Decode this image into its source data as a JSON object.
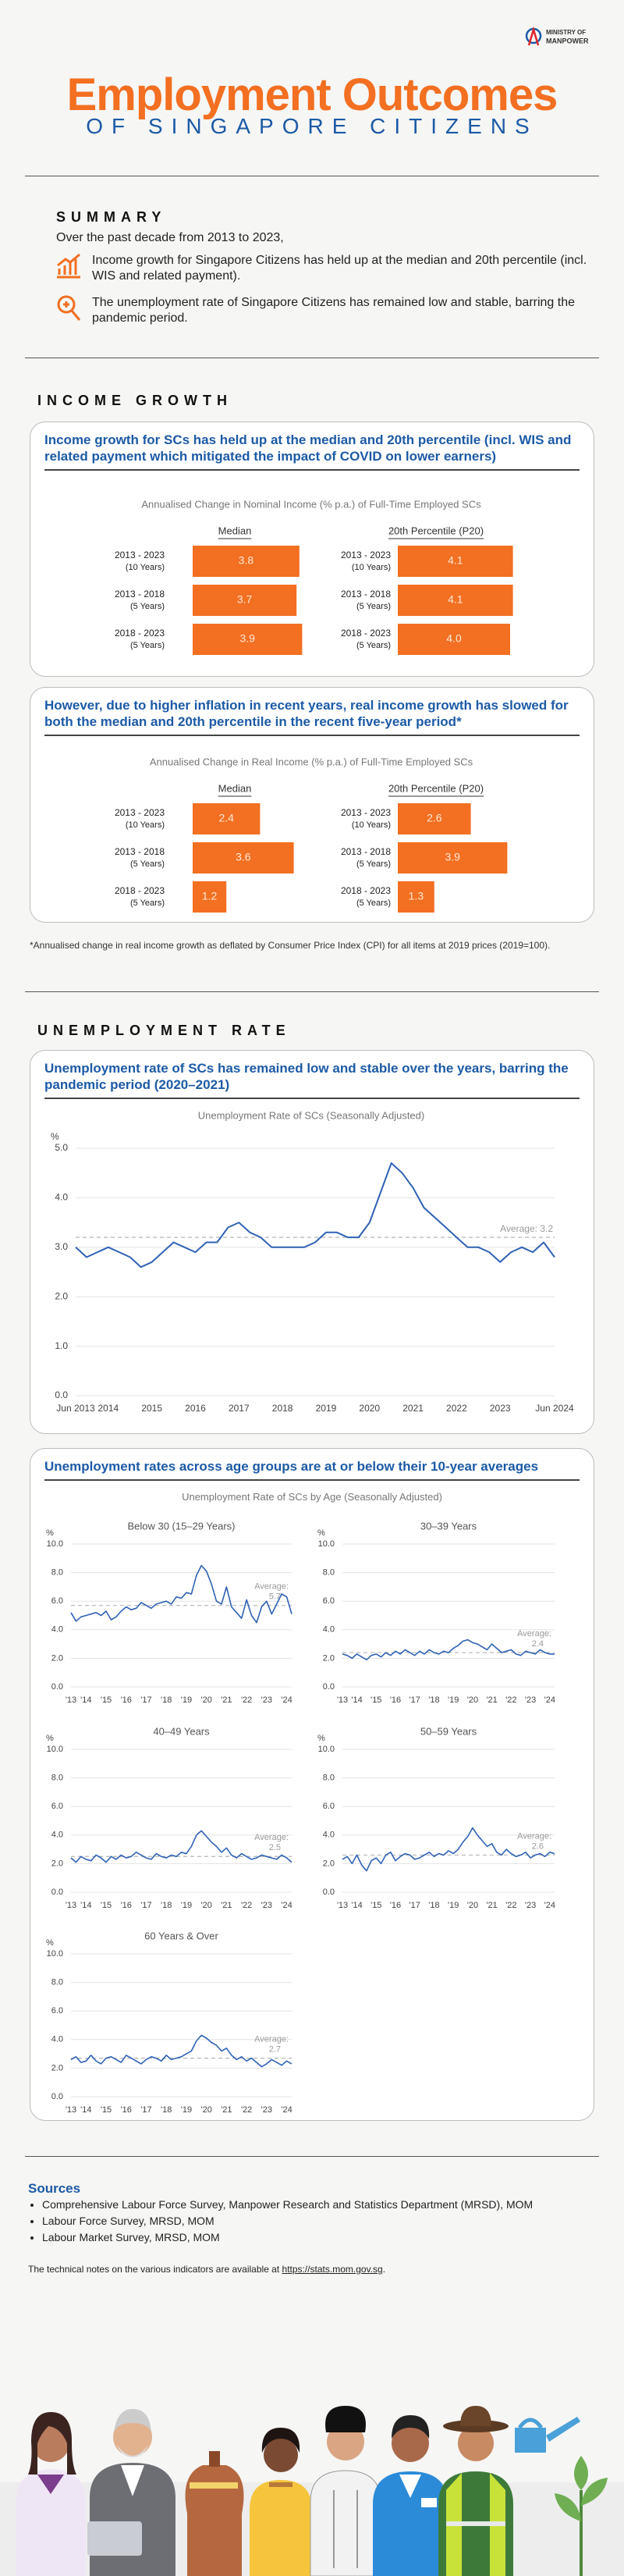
{
  "header": {
    "logo": [
      "MINISTRY OF",
      "MANPOWER"
    ],
    "title": "Employment Outcomes",
    "subtitle": "OF SINGAPORE CITIZENS"
  },
  "summary": {
    "heading": "SUMMARY",
    "intro": "Over the past decade from 2013 to 2023,",
    "points": [
      "Income growth for Singapore Citizens has held up at the median and 20th percentile (incl. WIS and related payment).",
      "The unemployment rate of Singapore Citizens has remained low and stable, barring the pandemic period."
    ]
  },
  "income": {
    "heading": "INCOME GROWTH",
    "footnote": "*Annualised change in real income growth as deflated by Consumer Price Index (CPI) for all items at 2019 prices (2019=100)."
  },
  "unemployment": {
    "heading": "UNEMPLOYMENT RATE",
    "age_headline": "Unemployment rates across age groups are at or below their 10-year averages",
    "age_title": "Unemployment Rate of SCs by Age (Seasonally Adjusted)"
  },
  "sources": {
    "heading": "Sources",
    "items": [
      "Comprehensive Labour Force Survey, Manpower Research and Statistics Department (MRSD), MOM",
      "Labour Force Survey, MRSD, MOM",
      "Labour Market Survey, MRSD, MOM"
    ],
    "note": "The technical notes on the various indicators are available at ",
    "link": "https://stats.mom.gov.sg",
    "note_end": "."
  },
  "chart_data": [
    {
      "type": "bar",
      "headline": "Income growth for SCs has held up at the median and 20th percentile (incl. WIS and related payment which mitigated the impact of COVID on lower earners)",
      "title": "Annualised Change in Nominal Income (% p.a.) of Full-Time Employed SCs",
      "categories": [
        "2013 - 2023",
        "2013 - 2018",
        "2018 - 2023"
      ],
      "category_periods": [
        "(10 Years)",
        "(5 Years)",
        "(5 Years)"
      ],
      "series": [
        {
          "name": "Median",
          "color": "#f36f21",
          "values": [
            3.8,
            3.7,
            3.9
          ],
          "value_labels": [
            "3.8",
            "3.7",
            "3.9"
          ]
        },
        {
          "name": "20th Percentile (P20)",
          "color": "#f36f21",
          "values": [
            4.1,
            4.1,
            4.0
          ],
          "value_labels": [
            "4.1",
            "4.1",
            "4.0"
          ]
        }
      ]
    },
    {
      "type": "bar",
      "headline": "However, due to higher inflation in recent years, real income growth has slowed for both the median and 20th percentile in the recent five-year period*",
      "title": "Annualised Change in Real Income (% p.a.) of Full-Time Employed SCs",
      "categories": [
        "2013 - 2023",
        "2013 - 2018",
        "2018 - 2023"
      ],
      "category_periods": [
        "(10 Years)",
        "(5 Years)",
        "(5 Years)"
      ],
      "series": [
        {
          "name": "Median",
          "color": "#f36f21",
          "values": [
            2.4,
            3.6,
            1.2
          ],
          "value_labels": [
            "2.4",
            "3.6",
            "1.2"
          ]
        },
        {
          "name": "20th Percentile (P20)",
          "color": "#f36f21",
          "values": [
            2.6,
            3.9,
            1.3
          ],
          "value_labels": [
            "2.6",
            "3.9",
            "1.3"
          ]
        }
      ]
    },
    {
      "type": "line",
      "headline": "Unemployment rate of SCs has remained low and stable over the years, barring the pandemic period (2020–2021)",
      "title": "Unemployment Rate of SCs (Seasonally Adjusted)",
      "y_unit": "%",
      "color": "#2f62b5",
      "categories": [
        "Jun 2013",
        null,
        null,
        "2014",
        null,
        null,
        null,
        "2015",
        null,
        null,
        null,
        "2016",
        null,
        null,
        null,
        "2017",
        null,
        null,
        null,
        "2018",
        null,
        null,
        null,
        "2019",
        null,
        null,
        null,
        "2020",
        null,
        null,
        null,
        "2021",
        null,
        null,
        null,
        "2022",
        null,
        null,
        null,
        "2023",
        null,
        null,
        null,
        null,
        "Jun 2024"
      ],
      "values": [
        3.0,
        2.8,
        2.9,
        3.0,
        2.9,
        2.8,
        2.6,
        2.7,
        2.9,
        3.1,
        3.0,
        2.9,
        3.1,
        3.1,
        3.4,
        3.5,
        3.3,
        3.2,
        3.0,
        3.0,
        3.0,
        3.0,
        3.1,
        3.3,
        3.3,
        3.2,
        3.2,
        3.5,
        4.1,
        4.7,
        4.5,
        4.2,
        3.8,
        3.6,
        3.4,
        3.2,
        3.0,
        3.0,
        2.9,
        2.7,
        2.9,
        3.0,
        2.9,
        3.1,
        2.8
      ],
      "average": 3.2,
      "average_label": "Average:",
      "ylim": [
        0,
        5
      ],
      "yticks": [
        {
          "value": 0,
          "label": "0.0"
        },
        {
          "value": 1,
          "label": "1.0"
        },
        {
          "value": 2,
          "label": "2.0"
        },
        {
          "value": 3,
          "label": "3.0"
        },
        {
          "value": 4,
          "label": "4.0"
        },
        {
          "value": 5,
          "label": "5.0"
        }
      ],
      "grid": true
    },
    {
      "type": "line",
      "title": "Below 30 (15–29 Years)",
      "y_unit": "%",
      "color": "#2f62b5",
      "categories": [
        "'13",
        null,
        null,
        "'14",
        null,
        null,
        null,
        "'15",
        null,
        null,
        null,
        "'16",
        null,
        null,
        null,
        "'17",
        null,
        null,
        null,
        "'18",
        null,
        null,
        null,
        "'19",
        null,
        null,
        null,
        "'20",
        null,
        null,
        null,
        "'21",
        null,
        null,
        null,
        "'22",
        null,
        null,
        null,
        "'23",
        null,
        null,
        null,
        "'24",
        null
      ],
      "values": [
        5.2,
        4.6,
        4.9,
        5.0,
        5.1,
        5.2,
        5.0,
        5.3,
        4.7,
        4.9,
        5.3,
        5.6,
        5.4,
        5.5,
        5.9,
        5.7,
        5.5,
        5.8,
        5.9,
        6.0,
        5.8,
        6.3,
        6.2,
        6.6,
        6.5,
        7.8,
        8.5,
        8.1,
        7.2,
        6.0,
        5.8,
        7.0,
        5.6,
        5.2,
        4.8,
        6.1,
        5.0,
        4.5,
        5.6,
        6.0,
        5.1,
        5.8,
        6.5,
        6.3,
        5.1
      ],
      "average": 5.7,
      "average_label": "Average:",
      "ylim": [
        0,
        10
      ],
      "yticks": [
        {
          "value": 0,
          "label": "0.0"
        },
        {
          "value": 2,
          "label": "2.0"
        },
        {
          "value": 4,
          "label": "4.0"
        },
        {
          "value": 6,
          "label": "6.0"
        },
        {
          "value": 8,
          "label": "8.0"
        },
        {
          "value": 10,
          "label": "10.0"
        }
      ],
      "grid": true
    },
    {
      "type": "line",
      "title": "30–39 Years",
      "y_unit": "%",
      "color": "#2f62b5",
      "categories": [
        "'13",
        null,
        null,
        "'14",
        null,
        null,
        null,
        "'15",
        null,
        null,
        null,
        "'16",
        null,
        null,
        null,
        "'17",
        null,
        null,
        null,
        "'18",
        null,
        null,
        null,
        "'19",
        null,
        null,
        null,
        "'20",
        null,
        null,
        null,
        "'21",
        null,
        null,
        null,
        "'22",
        null,
        null,
        null,
        "'23",
        null,
        null,
        null,
        "'24",
        null
      ],
      "values": [
        2.3,
        2.2,
        2.0,
        2.3,
        2.1,
        1.9,
        2.2,
        2.3,
        2.1,
        2.4,
        2.2,
        2.5,
        2.3,
        2.6,
        2.4,
        2.2,
        2.5,
        2.3,
        2.6,
        2.4,
        2.3,
        2.5,
        2.4,
        2.7,
        2.9,
        3.2,
        3.3,
        3.1,
        3.0,
        2.8,
        2.6,
        3.0,
        2.7,
        2.4,
        2.5,
        2.6,
        2.3,
        2.2,
        2.5,
        2.4,
        2.3,
        2.6,
        2.4,
        2.3,
        2.3
      ],
      "average": 2.4,
      "average_label": "Average:",
      "ylim": [
        0,
        10
      ],
      "yticks": [
        {
          "value": 0,
          "label": "0.0"
        },
        {
          "value": 2,
          "label": "2.0"
        },
        {
          "value": 4,
          "label": "4.0"
        },
        {
          "value": 6,
          "label": "6.0"
        },
        {
          "value": 8,
          "label": "8.0"
        },
        {
          "value": 10,
          "label": "10.0"
        }
      ],
      "grid": true
    },
    {
      "type": "line",
      "title": "40–49 Years",
      "y_unit": "%",
      "color": "#2f62b5",
      "categories": [
        "'13",
        null,
        null,
        "'14",
        null,
        null,
        null,
        "'15",
        null,
        null,
        null,
        "'16",
        null,
        null,
        null,
        "'17",
        null,
        null,
        null,
        "'18",
        null,
        null,
        null,
        "'19",
        null,
        null,
        null,
        "'20",
        null,
        null,
        null,
        "'21",
        null,
        null,
        null,
        "'22",
        null,
        null,
        null,
        "'23",
        null,
        null,
        null,
        "'24",
        null
      ],
      "values": [
        2.4,
        2.1,
        2.5,
        2.3,
        2.2,
        2.6,
        2.4,
        2.1,
        2.5,
        2.3,
        2.6,
        2.4,
        2.5,
        2.8,
        2.6,
        2.4,
        2.3,
        2.7,
        2.5,
        2.4,
        2.6,
        2.5,
        2.8,
        2.7,
        3.2,
        4.0,
        4.3,
        3.9,
        3.5,
        3.2,
        2.8,
        3.1,
        2.6,
        2.4,
        2.7,
        2.5,
        2.3,
        2.4,
        2.6,
        2.5,
        2.4,
        2.3,
        2.6,
        2.4,
        2.1
      ],
      "average": 2.5,
      "average_label": "Average:",
      "ylim": [
        0,
        10
      ],
      "yticks": [
        {
          "value": 0,
          "label": "0.0"
        },
        {
          "value": 2,
          "label": "2.0"
        },
        {
          "value": 4,
          "label": "4.0"
        },
        {
          "value": 6,
          "label": "6.0"
        },
        {
          "value": 8,
          "label": "8.0"
        },
        {
          "value": 10,
          "label": "10.0"
        }
      ],
      "grid": true
    },
    {
      "type": "line",
      "title": "50–59 Years",
      "y_unit": "%",
      "color": "#2f62b5",
      "categories": [
        "'13",
        null,
        null,
        "'14",
        null,
        null,
        null,
        "'15",
        null,
        null,
        null,
        "'16",
        null,
        null,
        null,
        "'17",
        null,
        null,
        null,
        "'18",
        null,
        null,
        null,
        "'19",
        null,
        null,
        null,
        "'20",
        null,
        null,
        null,
        "'21",
        null,
        null,
        null,
        "'22",
        null,
        null,
        null,
        "'23",
        null,
        null,
        null,
        "'24",
        null
      ],
      "values": [
        2.3,
        2.5,
        2.0,
        2.6,
        1.9,
        1.5,
        2.2,
        2.4,
        2.0,
        2.6,
        2.8,
        2.2,
        2.5,
        2.7,
        2.6,
        2.3,
        2.4,
        2.6,
        2.8,
        2.5,
        2.7,
        2.6,
        2.9,
        2.7,
        3.0,
        3.5,
        3.9,
        4.5,
        4.0,
        3.6,
        3.2,
        3.4,
        2.8,
        2.6,
        3.0,
        2.7,
        2.5,
        2.6,
        2.8,
        2.4,
        2.6,
        2.7,
        2.5,
        2.8,
        2.7
      ],
      "average": 2.6,
      "average_label": "Average:",
      "ylim": [
        0,
        10
      ],
      "yticks": [
        {
          "value": 0,
          "label": "0.0"
        },
        {
          "value": 2,
          "label": "2.0"
        },
        {
          "value": 4,
          "label": "4.0"
        },
        {
          "value": 6,
          "label": "6.0"
        },
        {
          "value": 8,
          "label": "8.0"
        },
        {
          "value": 10,
          "label": "10.0"
        }
      ],
      "grid": true
    },
    {
      "type": "line",
      "title": "60 Years & Over",
      "y_unit": "%",
      "color": "#2f62b5",
      "categories": [
        "'13",
        null,
        null,
        "'14",
        null,
        null,
        null,
        "'15",
        null,
        null,
        null,
        "'16",
        null,
        null,
        null,
        "'17",
        null,
        null,
        null,
        "'18",
        null,
        null,
        null,
        "'19",
        null,
        null,
        null,
        "'20",
        null,
        null,
        null,
        "'21",
        null,
        null,
        null,
        "'22",
        null,
        null,
        null,
        "'23",
        null,
        null,
        null,
        "'24",
        null
      ],
      "values": [
        2.6,
        2.8,
        2.4,
        2.5,
        2.9,
        2.5,
        2.3,
        2.7,
        2.8,
        2.6,
        2.4,
        2.9,
        2.7,
        2.5,
        2.3,
        2.6,
        2.8,
        2.7,
        2.5,
        2.9,
        2.6,
        2.7,
        2.8,
        3.0,
        3.2,
        3.9,
        4.3,
        4.1,
        3.8,
        3.6,
        3.2,
        3.4,
        2.9,
        2.6,
        2.8,
        2.5,
        2.7,
        2.4,
        2.1,
        2.3,
        2.6,
        2.4,
        2.2,
        2.5,
        2.3
      ],
      "average": 2.7,
      "average_label": "Average:",
      "ylim": [
        0,
        10
      ],
      "yticks": [
        {
          "value": 0,
          "label": "0.0"
        },
        {
          "value": 2,
          "label": "2.0"
        },
        {
          "value": 4,
          "label": "4.0"
        },
        {
          "value": 6,
          "label": "6.0"
        },
        {
          "value": 8,
          "label": "8.0"
        },
        {
          "value": 10,
          "label": "10.0"
        }
      ],
      "grid": true
    }
  ]
}
